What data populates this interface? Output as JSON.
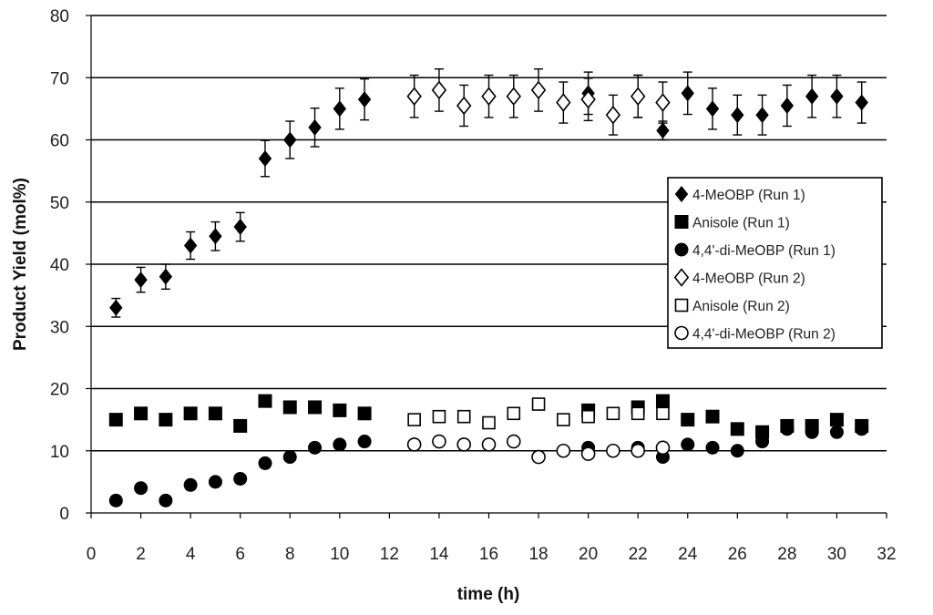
{
  "chart_data": {
    "type": "scatter",
    "title": "",
    "xlabel": "time (h)",
    "ylabel": "Product Yield (mol%)",
    "xlim": [
      0,
      32
    ],
    "ylim": [
      0,
      80
    ],
    "x_ticks": [
      0,
      2,
      4,
      6,
      8,
      10,
      12,
      14,
      16,
      18,
      20,
      22,
      24,
      26,
      28,
      30,
      32
    ],
    "y_ticks": [
      0,
      10,
      20,
      30,
      40,
      50,
      60,
      70,
      80
    ],
    "grid": "horizontal",
    "legend_position": "right",
    "series": [
      {
        "name": "4-MeOBP (Run 1)",
        "marker": "diamond-filled",
        "x": [
          1,
          2,
          3,
          4,
          5,
          6,
          7,
          8,
          9,
          10,
          11,
          20,
          22,
          23,
          24,
          25,
          26,
          27,
          28,
          29,
          30,
          31
        ],
        "y": [
          33,
          37.5,
          38,
          43,
          44.5,
          46,
          57,
          60,
          62,
          65,
          66.5,
          67.5,
          67,
          61.5,
          67.5,
          65,
          64,
          64,
          65.5,
          67,
          67,
          66
        ],
        "err": [
          1.5,
          2,
          2,
          2.2,
          2.3,
          2.3,
          2.9,
          3,
          3.1,
          3.3,
          3.3,
          3.4,
          3.4,
          1.5,
          3.4,
          3.3,
          3.2,
          3.2,
          3.3,
          3.4,
          3.4,
          3.3
        ]
      },
      {
        "name": "Anisole (Run 1)",
        "marker": "square-filled",
        "x": [
          1,
          2,
          3,
          4,
          5,
          6,
          7,
          8,
          9,
          10,
          11,
          20,
          22,
          23,
          24,
          25,
          26,
          27,
          28,
          29,
          30,
          31
        ],
        "y": [
          15,
          16,
          15,
          16,
          16,
          14,
          18,
          17,
          17,
          16.5,
          16,
          16.5,
          17,
          18,
          15,
          15.5,
          13.5,
          13,
          14,
          14,
          15,
          14
        ],
        "err": []
      },
      {
        "name": "4,4'-di-MeOBP (Run 1)",
        "marker": "circle-filled",
        "x": [
          1,
          2,
          3,
          4,
          5,
          6,
          7,
          8,
          9,
          10,
          11,
          20,
          22,
          23,
          24,
          25,
          26,
          27,
          28,
          29,
          30,
          31
        ],
        "y": [
          2,
          4,
          2,
          4.5,
          5,
          5.5,
          8,
          9,
          10.5,
          11,
          11.5,
          10.5,
          10.5,
          9,
          11,
          10.5,
          10,
          11.5,
          13.5,
          13,
          13,
          13.5
        ],
        "err": []
      },
      {
        "name": "4-MeOBP (Run 2)",
        "marker": "diamond-open",
        "x": [
          13,
          14,
          15,
          16,
          17,
          18,
          19,
          20,
          21,
          22,
          23
        ],
        "y": [
          67,
          68,
          65.5,
          67,
          67,
          68,
          66,
          66.5,
          64,
          67,
          66
        ],
        "err": [
          3.4,
          3.4,
          3.3,
          3.4,
          3.4,
          3.4,
          3.3,
          3.4,
          3.2,
          3.4,
          3.3
        ]
      },
      {
        "name": "Anisole (Run 2)",
        "marker": "square-open",
        "x": [
          13,
          14,
          15,
          16,
          17,
          18,
          19,
          20,
          21,
          22,
          23
        ],
        "y": [
          15,
          15.5,
          15.5,
          14.5,
          16,
          17.5,
          15,
          15.5,
          16,
          16,
          16
        ],
        "err": [
          0.8,
          0.8,
          0.8,
          0.8,
          0.8,
          0.8,
          0.8,
          0.8,
          0.8,
          0.8,
          0.8
        ]
      },
      {
        "name": "4,4'-di-MeOBP (Run 2)",
        "marker": "circle-open",
        "x": [
          13,
          14,
          15,
          16,
          17,
          18,
          19,
          20,
          21,
          22,
          23
        ],
        "y": [
          11,
          11.5,
          11,
          11,
          11.5,
          9,
          10,
          9.5,
          10,
          10,
          10.5
        ],
        "err": [
          0.6,
          0.6,
          0.6,
          0.6,
          0.6,
          0.6,
          0.6,
          0.6,
          0.6,
          0.6,
          0.6
        ]
      }
    ]
  }
}
